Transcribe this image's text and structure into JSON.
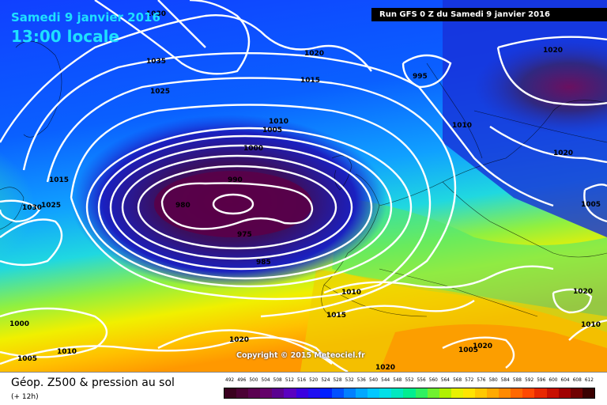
{
  "header": {
    "date_label": "Samedi 9 janvier 2016",
    "time_label": "13:00 locale",
    "run_info": "Run GFS 0 Z du Samedi 9 janvier 2016"
  },
  "copyright": "Copyright © 2015 Meteociel.fr",
  "footer": {
    "title": "Géop. Z500 & pression au sol",
    "subtitle": "(+ 12h)"
  },
  "isobar_labels": [
    "1030",
    "1035",
    "1025",
    "1020",
    "1015",
    "1010",
    "1005",
    "1000",
    "990",
    "980",
    "975",
    "985",
    "995",
    "1010",
    "1015",
    "1020",
    "1020",
    "1010",
    "1015",
    "1005",
    "1020",
    "1030",
    "1025",
    "1020",
    "1000",
    "1005",
    "1010",
    "1020",
    "1010",
    "1005",
    "1020"
  ],
  "scale": {
    "values": [
      "492",
      "496",
      "500",
      "504",
      "508",
      "512",
      "516",
      "520",
      "524",
      "528",
      "532",
      "536",
      "540",
      "544",
      "548",
      "552",
      "556",
      "560",
      "564",
      "568",
      "572",
      "576",
      "580",
      "584",
      "588",
      "592",
      "596",
      "600",
      "604",
      "608",
      "612"
    ],
    "colors": [
      "#3a001f",
      "#4b0035",
      "#5a0050",
      "#64006a",
      "#5a0090",
      "#5a00c0",
      "#3a00e0",
      "#2010f0",
      "#0020ff",
      "#0050ff",
      "#0080ff",
      "#00a8ff",
      "#00c8ff",
      "#00e0e8",
      "#00e8c0",
      "#00ee90",
      "#30f060",
      "#70f030",
      "#b0f000",
      "#e8f000",
      "#ffe400",
      "#ffc800",
      "#ffaa00",
      "#ff8a00",
      "#ff6800",
      "#ff4800",
      "#e82800",
      "#c81000",
      "#a00000",
      "#700000",
      "#3a0000"
    ]
  }
}
